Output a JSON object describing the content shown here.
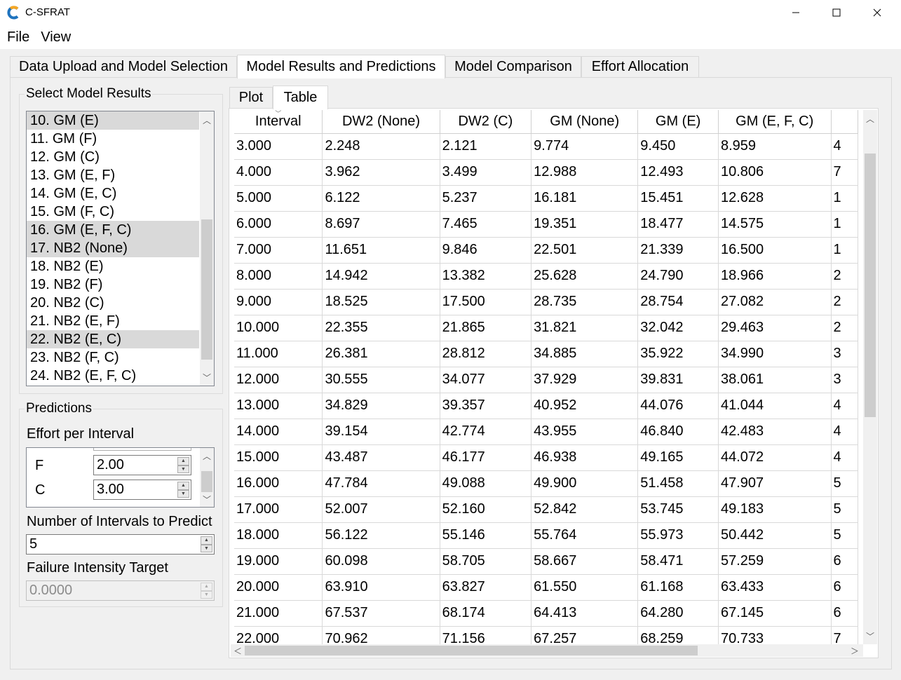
{
  "window": {
    "title": "C-SFRAT",
    "controls": {
      "minimize": "–",
      "maximize": "☐",
      "close": "✕"
    }
  },
  "menu": [
    "File",
    "View"
  ],
  "tabs": [
    {
      "label": "Data Upload and Model Selection",
      "active": false
    },
    {
      "label": "Model Results and Predictions",
      "active": true
    },
    {
      "label": "Model Comparison",
      "active": false
    },
    {
      "label": "Effort Allocation",
      "active": false
    }
  ],
  "model_results": {
    "group_title": "Select Model Results",
    "items": [
      {
        "label": "10. GM (E)",
        "selected": true
      },
      {
        "label": "11. GM (F)",
        "selected": false
      },
      {
        "label": "12. GM (C)",
        "selected": false
      },
      {
        "label": "13. GM (E, F)",
        "selected": false
      },
      {
        "label": "14. GM (E, C)",
        "selected": false
      },
      {
        "label": "15. GM (F, C)",
        "selected": false
      },
      {
        "label": "16. GM (E, F, C)",
        "selected": true
      },
      {
        "label": "17. NB2 (None)",
        "selected": true
      },
      {
        "label": "18. NB2 (E)",
        "selected": false
      },
      {
        "label": "19. NB2 (F)",
        "selected": false
      },
      {
        "label": "20. NB2 (C)",
        "selected": false
      },
      {
        "label": "21. NB2 (E, F)",
        "selected": false
      },
      {
        "label": "22. NB2 (E, C)",
        "selected": true
      },
      {
        "label": "23. NB2 (F, C)",
        "selected": false
      },
      {
        "label": "24. NB2 (E, F, C)",
        "selected": false
      }
    ]
  },
  "predictions": {
    "group_title": "Predictions",
    "effort_label": "Effort per Interval",
    "effort_fields": [
      {
        "label": "F",
        "value": "2.00"
      },
      {
        "label": "C",
        "value": "3.00"
      }
    ],
    "intervals_label": "Number of Intervals to Predict",
    "intervals_value": "5",
    "intensity_label": "Failure Intensity Target",
    "intensity_value": "0.0000"
  },
  "inner_tabs": [
    {
      "label": "Plot",
      "active": false
    },
    {
      "label": "Table",
      "active": true
    }
  ],
  "table": {
    "columns": [
      "Interval",
      "DW2 (None)",
      "DW2 (C)",
      "GM (None)",
      "GM (E)",
      "GM (E, F, C)",
      ""
    ],
    "rows": [
      [
        "3.000",
        "2.248",
        "2.121",
        "9.774",
        "9.450",
        "8.959",
        "4"
      ],
      [
        "4.000",
        "3.962",
        "3.499",
        "12.988",
        "12.493",
        "10.806",
        "7"
      ],
      [
        "5.000",
        "6.122",
        "5.237",
        "16.181",
        "15.451",
        "12.628",
        "1"
      ],
      [
        "6.000",
        "8.697",
        "7.465",
        "19.351",
        "18.477",
        "14.575",
        "1"
      ],
      [
        "7.000",
        "11.651",
        "9.846",
        "22.501",
        "21.339",
        "16.500",
        "1"
      ],
      [
        "8.000",
        "14.942",
        "13.382",
        "25.628",
        "24.790",
        "18.966",
        "2"
      ],
      [
        "9.000",
        "18.525",
        "17.500",
        "28.735",
        "28.754",
        "27.082",
        "2"
      ],
      [
        "10.000",
        "22.355",
        "21.865",
        "31.821",
        "32.042",
        "29.463",
        "2"
      ],
      [
        "11.000",
        "26.381",
        "28.812",
        "34.885",
        "35.922",
        "34.990",
        "3"
      ],
      [
        "12.000",
        "30.555",
        "34.077",
        "37.929",
        "39.831",
        "38.061",
        "3"
      ],
      [
        "13.000",
        "34.829",
        "39.357",
        "40.952",
        "44.076",
        "41.044",
        "4"
      ],
      [
        "14.000",
        "39.154",
        "42.774",
        "43.955",
        "46.840",
        "42.483",
        "4"
      ],
      [
        "15.000",
        "43.487",
        "46.177",
        "46.938",
        "49.165",
        "44.072",
        "4"
      ],
      [
        "16.000",
        "47.784",
        "49.088",
        "49.900",
        "51.458",
        "47.907",
        "5"
      ],
      [
        "17.000",
        "52.007",
        "52.160",
        "52.842",
        "53.745",
        "49.183",
        "5"
      ],
      [
        "18.000",
        "56.122",
        "55.146",
        "55.764",
        "55.973",
        "50.442",
        "5"
      ],
      [
        "19.000",
        "60.098",
        "58.705",
        "58.667",
        "58.471",
        "57.259",
        "6"
      ],
      [
        "20.000",
        "63.910",
        "63.827",
        "61.550",
        "61.168",
        "63.433",
        "6"
      ],
      [
        "21.000",
        "67.537",
        "68.174",
        "64.413",
        "64.280",
        "67.145",
        "6"
      ],
      [
        "22.000",
        "70.962",
        "71.156",
        "67.257",
        "68.259",
        "70.733",
        "7"
      ]
    ]
  },
  "colors": {
    "selection": "#d9d9d9",
    "scrollbar_thumb": "#cdcdcd",
    "icon_blue": "#1e73be",
    "icon_orange": "#f5a623"
  }
}
